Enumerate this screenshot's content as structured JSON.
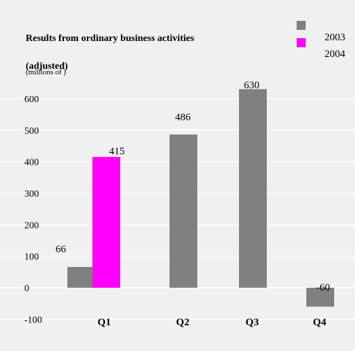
{
  "chart_data": {
    "type": "bar",
    "title": "Results from ordinary business activities",
    "title_line2": "(adjusted)",
    "unit_label": "(millions of )",
    "categories": [
      "Q1",
      "Q2",
      "Q3",
      "Q4"
    ],
    "series": [
      {
        "name": "2003",
        "color": "#808080",
        "values": [
          66,
          486,
          630,
          -60
        ]
      },
      {
        "name": "2004",
        "color": "#ff00ff",
        "values": [
          415,
          null,
          null,
          null
        ]
      }
    ],
    "data_labels": [
      {
        "series": 0,
        "category": 0,
        "text": "66"
      },
      {
        "series": 1,
        "category": 0,
        "text": "415"
      },
      {
        "series": 0,
        "category": 1,
        "text": "486"
      },
      {
        "series": 0,
        "category": 2,
        "text": "630"
      },
      {
        "series": 0,
        "category": 3,
        "text": "-60"
      }
    ],
    "ylim": [
      -100,
      700
    ],
    "yticks": [
      -100,
      0,
      100,
      200,
      300,
      400,
      500,
      600
    ],
    "grid": true,
    "legend_position": "top-right",
    "background": "#f0f0f0"
  }
}
